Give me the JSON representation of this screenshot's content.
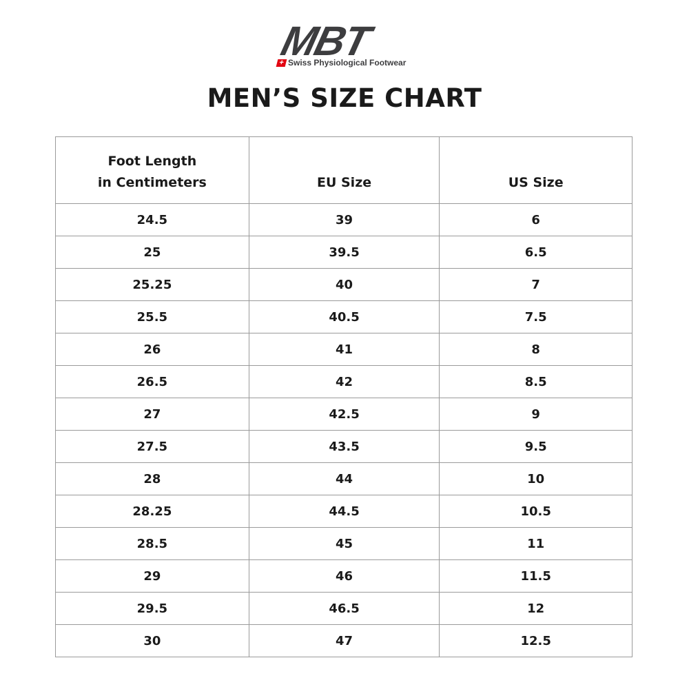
{
  "brand": {
    "logo_text": "MBT",
    "tagline": "Swiss Physiological Footwear",
    "flag_color": "#e30613",
    "logo_color": "#3d3d3f"
  },
  "title": "MEN’S SIZE CHART",
  "table": {
    "headers": [
      "Foot Length in Centimeters",
      "EU Size",
      "US Size"
    ],
    "header_lines": [
      "Foot Length",
      "in Centimeters"
    ],
    "rows": [
      [
        "24.5",
        "39",
        "6"
      ],
      [
        "25",
        "39.5",
        "6.5"
      ],
      [
        "25.25",
        "40",
        "7"
      ],
      [
        "25.5",
        "40.5",
        "7.5"
      ],
      [
        "26",
        "41",
        "8"
      ],
      [
        "26.5",
        "42",
        "8.5"
      ],
      [
        "27",
        "42.5",
        "9"
      ],
      [
        "27.5",
        "43.5",
        "9.5"
      ],
      [
        "28",
        "44",
        "10"
      ],
      [
        "28.25",
        "44.5",
        "10.5"
      ],
      [
        "28.5",
        "45",
        "11"
      ],
      [
        "29",
        "46",
        "11.5"
      ],
      [
        "29.5",
        "46.5",
        "12"
      ],
      [
        "30",
        "47",
        "12.5"
      ]
    ]
  }
}
